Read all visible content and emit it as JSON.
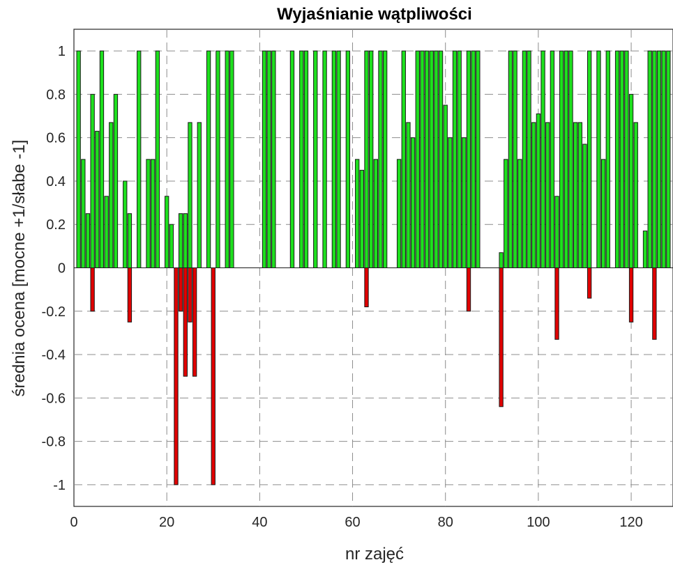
{
  "chart_data": {
    "type": "bar",
    "title": "Wyjaśnianie wątpliwości",
    "xlabel": "nr zajęć",
    "ylabel": "średnia ocena [mocne +1/słabe -1]",
    "xlim": [
      0,
      129
    ],
    "ylim": [
      -1.1,
      1.1
    ],
    "xticks": [
      0,
      20,
      40,
      60,
      80,
      100,
      120
    ],
    "yticks": [
      -1,
      -0.8,
      -0.6,
      -0.4,
      -0.2,
      0,
      0.2,
      0.4,
      0.6,
      0.8,
      1
    ],
    "xtick_labels": [
      "0",
      "20",
      "40",
      "60",
      "80",
      "100",
      "120"
    ],
    "ytick_labels": [
      "-1",
      "-0.8",
      "-0.6",
      "-0.4",
      "-0.2",
      "0",
      "0.2",
      "0.4",
      "0.6",
      "0.8",
      "1"
    ],
    "grid": true,
    "series": [
      {
        "color": "#1ee01e",
        "x": [
          1,
          2,
          3,
          4,
          5,
          6,
          7,
          8,
          9,
          11,
          12,
          14,
          16,
          17,
          18,
          20,
          21,
          23,
          24,
          25,
          27,
          29,
          31,
          33,
          34,
          41,
          42,
          43,
          47,
          49,
          50,
          52,
          54,
          56,
          57,
          59,
          61,
          62,
          63,
          64,
          65,
          66,
          67,
          70,
          71,
          72,
          73,
          74,
          75,
          76,
          77,
          78,
          79,
          80,
          81,
          82,
          83,
          84,
          85,
          86,
          87,
          92,
          93,
          94,
          95,
          96,
          97,
          98,
          99,
          100,
          101,
          102,
          103,
          104,
          105,
          106,
          107,
          108,
          109,
          110,
          111,
          113,
          114,
          115,
          117,
          118,
          119,
          120,
          121,
          123,
          124,
          125,
          126,
          127,
          128
        ],
        "values": [
          1,
          0.5,
          0.25,
          0.8,
          0.63,
          1,
          0.33,
          0.67,
          0.8,
          0.4,
          0.25,
          1,
          0.5,
          0.5,
          1,
          0.33,
          0.2,
          0.25,
          0.25,
          0.67,
          0.67,
          1,
          1,
          1,
          1,
          1,
          1,
          1,
          1,
          1,
          1,
          1,
          1,
          1,
          1,
          1,
          0.5,
          0.45,
          1,
          1,
          0.5,
          1,
          1,
          0.5,
          1,
          0.67,
          0.6,
          1,
          1,
          1,
          1,
          1,
          1,
          0.75,
          0.6,
          1,
          1,
          0.6,
          1,
          1,
          1,
          0.07,
          0.5,
          1,
          1,
          0.5,
          1,
          1,
          0.67,
          0.71,
          1,
          0.67,
          1,
          0.33,
          1,
          1,
          1,
          0.67,
          0.67,
          0.57,
          1,
          1,
          0.5,
          1,
          1,
          1,
          1,
          0.8,
          0.67,
          0.17,
          1,
          1,
          1,
          1,
          1
        ]
      },
      {
        "color": "#e00000",
        "x": [
          4,
          12,
          22,
          23,
          24,
          25,
          26,
          30,
          63,
          85,
          92,
          104,
          111,
          120,
          125
        ],
        "values": [
          -0.2,
          -0.25,
          -1,
          -0.2,
          -0.5,
          -0.25,
          -0.5,
          -1,
          -0.18,
          -0.2,
          -0.64,
          -0.33,
          -0.14,
          -0.25,
          -0.33
        ]
      }
    ]
  }
}
